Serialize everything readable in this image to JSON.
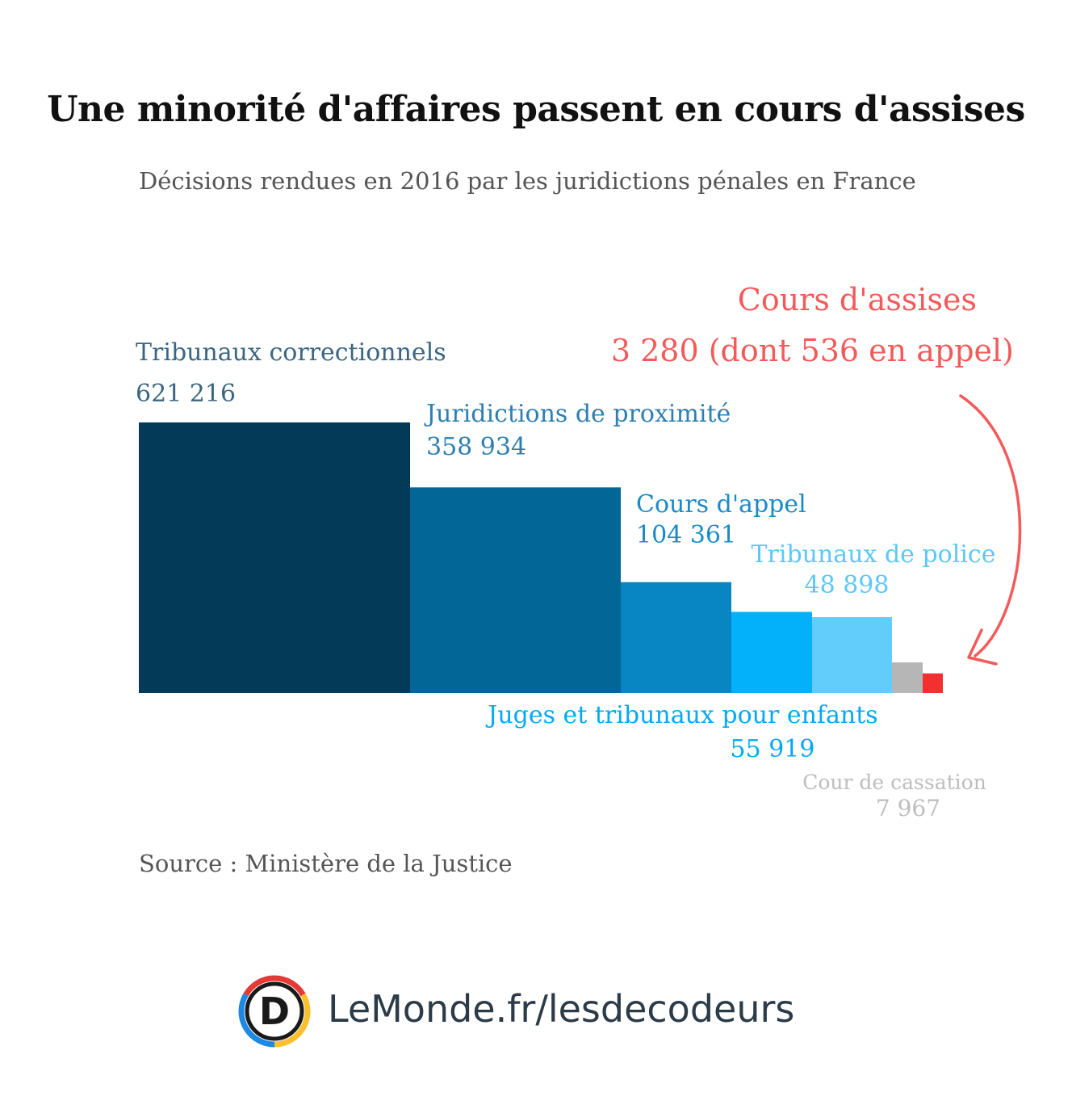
{
  "header": {
    "title": "Une minorité d'affaires passent en cours d'assises",
    "subtitle": "Décisions rendues en 2016 par les juridictions pénales en France"
  },
  "source": "Source : Ministère de la Justice",
  "brand": {
    "text": "LeMonde.fr/lesdecodeurs",
    "logo_letter": "D",
    "logo_colors": [
      "#e53935",
      "#fbc02d",
      "#1e88e5"
    ]
  },
  "chart_data": {
    "type": "bar",
    "categories": [
      "Tribunaux correctionnels",
      "Juridictions de proximité",
      "Cours d'appel",
      "Juges et tribunaux pour enfants",
      "Tribunaux de police",
      "Cour de cassation",
      "Cours d'assises"
    ],
    "values": [
      621216,
      358934,
      104361,
      55919,
      48898,
      7967,
      3280
    ],
    "value_labels": [
      "621 216",
      "358 934",
      "104 361",
      "55 919",
      "48 898",
      "7 967",
      "3 280"
    ],
    "colors": [
      "#023a57",
      "#026797",
      "#0886c3",
      "#03b1fb",
      "#62cdfb",
      "#b6b6b6",
      "#f23030"
    ],
    "annotation": "3 280 (dont 536 en appel)",
    "annotation_color": "#f45a5a",
    "title": "Une minorité d'affaires passent en cours d'assises",
    "subtitle": "Décisions rendues en 2016 par les juridictions pénales en France",
    "xlabel": "",
    "ylabel": ""
  }
}
